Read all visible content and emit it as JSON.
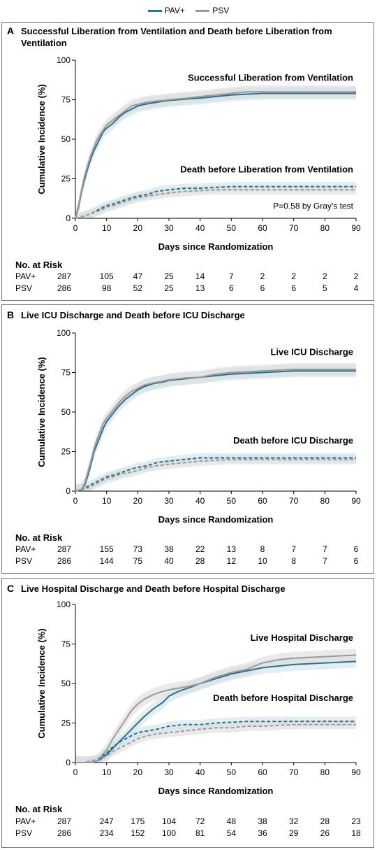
{
  "legend": [
    {
      "name": "PAV+",
      "color": "#2e6f8e"
    },
    {
      "name": "PSV",
      "color": "#9a9a9a"
    }
  ],
  "colors": {
    "pav_line": "#2e6f8e",
    "psv_line": "#9a9a9a",
    "pav_band": "#cfe2ea",
    "psv_band": "#dcdcdc"
  },
  "risk_header": "No. at Risk",
  "chart_data": [
    {
      "type": "line",
      "panel": "A",
      "title": "Successful Liberation from Ventilation and Death before Liberation from Ventilation",
      "xlabel": "Days since Randomization",
      "ylabel": "Cumulative Incidence (%)",
      "xlim": [
        0,
        90
      ],
      "ylim": [
        0,
        100
      ],
      "xticks": [
        0,
        10,
        20,
        30,
        40,
        50,
        60,
        70,
        80,
        90
      ],
      "yticks": [
        0,
        25,
        50,
        75,
        100
      ],
      "annotations": [
        {
          "text": "Successful Liberation from Ventilation",
          "x": 90,
          "y": 87
        },
        {
          "text": "Death before Liberation from Ventilation",
          "x": 90,
          "y": 29
        },
        {
          "text": "P=0.58 by Gray’s test",
          "x": 90,
          "y": 6
        }
      ],
      "series": [
        {
          "name": "PAV+",
          "outcome": "main",
          "dash": false,
          "x": [
            0,
            1,
            2,
            3,
            4,
            5,
            6,
            7,
            8,
            9,
            10,
            12,
            14,
            16,
            18,
            20,
            22,
            25,
            28,
            30,
            33,
            36,
            40,
            45,
            50,
            55,
            60,
            70,
            80,
            90
          ],
          "y": [
            0,
            7,
            17,
            25,
            32,
            38,
            43,
            47,
            51,
            55,
            57,
            60,
            64,
            67,
            69,
            71,
            72,
            73,
            74,
            74.5,
            75,
            75.5,
            76,
            77,
            78,
            78.5,
            79,
            79,
            79,
            79
          ]
        },
        {
          "name": "PSV",
          "outcome": "main",
          "dash": false,
          "x": [
            0,
            1,
            2,
            3,
            4,
            5,
            6,
            7,
            8,
            9,
            10,
            12,
            14,
            16,
            18,
            20,
            22,
            25,
            28,
            30,
            33,
            36,
            40,
            45,
            50,
            55,
            60,
            70,
            80,
            90
          ],
          "y": [
            0,
            8,
            18,
            27,
            34,
            40,
            45,
            50,
            53,
            56,
            59,
            62,
            65,
            68,
            71,
            72,
            73,
            74,
            74.5,
            75,
            75.5,
            76,
            77,
            78,
            79,
            80,
            80,
            80,
            80,
            80
          ]
        },
        {
          "name": "PAV+",
          "outcome": "death",
          "dash": true,
          "x": [
            0,
            1,
            2,
            3,
            5,
            8,
            10,
            12,
            15,
            18,
            20,
            23,
            26,
            30,
            35,
            40,
            45,
            50,
            60,
            70,
            80,
            90
          ],
          "y": [
            0,
            0.5,
            1,
            1.5,
            3,
            6,
            8,
            9,
            11,
            13,
            14,
            15,
            17,
            18,
            19,
            19,
            19.5,
            20,
            20,
            20,
            20,
            20
          ]
        },
        {
          "name": "PSV",
          "outcome": "death",
          "dash": true,
          "x": [
            0,
            1,
            2,
            3,
            5,
            8,
            10,
            12,
            15,
            18,
            20,
            23,
            26,
            30,
            35,
            40,
            45,
            50,
            60,
            70,
            80,
            90
          ],
          "y": [
            0,
            0.5,
            1,
            1.5,
            3,
            5,
            7,
            8,
            10,
            12,
            13,
            14,
            15,
            16,
            17,
            17.5,
            18,
            18,
            18,
            18,
            18,
            18
          ]
        }
      ],
      "risk": {
        "x": [
          0,
          10,
          20,
          30,
          40,
          50,
          60,
          70,
          80,
          90
        ],
        "rows": [
          {
            "label": "PAV+",
            "values": [
              287,
              105,
              47,
              25,
              14,
              7,
              2,
              2,
              2,
              2
            ]
          },
          {
            "label": "PSV",
            "values": [
              286,
              98,
              52,
              25,
              13,
              6,
              6,
              6,
              5,
              4
            ]
          }
        ]
      }
    },
    {
      "type": "line",
      "panel": "B",
      "title": "Live ICU Discharge and Death before ICU Discharge",
      "xlabel": "Days since Randomization",
      "ylabel": "Cumulative Incidence (%)",
      "xlim": [
        0,
        90
      ],
      "ylim": [
        0,
        100
      ],
      "xticks": [
        0,
        10,
        20,
        30,
        40,
        50,
        60,
        70,
        80,
        90
      ],
      "yticks": [
        0,
        25,
        50,
        75,
        100
      ],
      "annotations": [
        {
          "text": "Live ICU Discharge",
          "x": 90,
          "y": 86
        },
        {
          "text": "Death before ICU Discharge",
          "x": 90,
          "y": 30
        }
      ],
      "series": [
        {
          "name": "PAV+",
          "outcome": "main",
          "dash": false,
          "x": [
            0,
            2,
            3,
            4,
            5,
            6,
            7,
            8,
            9,
            10,
            12,
            14,
            16,
            18,
            20,
            22,
            25,
            28,
            30,
            35,
            40,
            45,
            50,
            60,
            70,
            80,
            90
          ],
          "y": [
            0,
            1,
            4,
            10,
            17,
            25,
            30,
            35,
            40,
            44,
            49,
            54,
            58,
            61,
            64,
            66,
            68,
            69,
            70,
            71,
            72,
            73,
            74,
            75,
            76,
            76,
            76
          ]
        },
        {
          "name": "PSV",
          "outcome": "main",
          "dash": false,
          "x": [
            0,
            2,
            3,
            4,
            5,
            6,
            7,
            8,
            9,
            10,
            12,
            14,
            16,
            18,
            20,
            22,
            25,
            28,
            30,
            35,
            40,
            45,
            50,
            60,
            70,
            80,
            90
          ],
          "y": [
            0,
            1,
            5,
            12,
            19,
            27,
            33,
            38,
            43,
            46,
            51,
            56,
            60,
            63,
            65,
            67,
            68.5,
            69.5,
            70.5,
            71.5,
            72,
            74,
            75,
            76,
            77,
            77,
            77
          ]
        },
        {
          "name": "PAV+",
          "outcome": "death",
          "dash": true,
          "x": [
            0,
            2,
            4,
            6,
            8,
            10,
            12,
            15,
            18,
            20,
            23,
            26,
            30,
            35,
            40,
            45,
            50,
            60,
            70,
            80,
            90
          ],
          "y": [
            0,
            1,
            3,
            5,
            7,
            9,
            10,
            12,
            14,
            15,
            16,
            18,
            19,
            20,
            21,
            21,
            21,
            21,
            21,
            21,
            21
          ]
        },
        {
          "name": "PSV",
          "outcome": "death",
          "dash": true,
          "x": [
            0,
            2,
            4,
            6,
            8,
            10,
            12,
            15,
            18,
            20,
            23,
            26,
            30,
            35,
            40,
            45,
            50,
            60,
            70,
            80,
            90
          ],
          "y": [
            0,
            1,
            2,
            4,
            6,
            8,
            9,
            11,
            12,
            13,
            15,
            16,
            17,
            18,
            19,
            19.5,
            20,
            20,
            20,
            20,
            20
          ]
        }
      ],
      "risk": {
        "x": [
          0,
          10,
          20,
          30,
          40,
          50,
          60,
          70,
          80,
          90
        ],
        "rows": [
          {
            "label": "PAV+",
            "values": [
              287,
              155,
              73,
              38,
              22,
              13,
              8,
              7,
              7,
              6
            ]
          },
          {
            "label": "PSV",
            "values": [
              286,
              144,
              75,
              40,
              28,
              12,
              10,
              8,
              7,
              6
            ]
          }
        ]
      }
    },
    {
      "type": "line",
      "panel": "C",
      "title": "Live Hospital Discharge and Death before Hospital Discharge",
      "xlabel": "Days since Randomization",
      "ylabel": "Cumulative Incidence (%)",
      "xlim": [
        0,
        90
      ],
      "ylim": [
        0,
        100
      ],
      "xticks": [
        0,
        10,
        20,
        30,
        40,
        50,
        60,
        70,
        80,
        90
      ],
      "yticks": [
        0,
        25,
        50,
        75,
        100
      ],
      "annotations": [
        {
          "text": "Live Hospital Discharge",
          "x": 90,
          "y": 77
        },
        {
          "text": "Death before Hospital Discharge",
          "x": 90,
          "y": 39
        }
      ],
      "series": [
        {
          "name": "PAV+",
          "outcome": "main",
          "dash": false,
          "x": [
            0,
            3,
            5,
            7,
            8,
            10,
            12,
            14,
            16,
            18,
            20,
            22,
            25,
            28,
            30,
            33,
            36,
            40,
            45,
            50,
            55,
            60,
            65,
            70,
            80,
            90
          ],
          "y": [
            0,
            0,
            0,
            1,
            2,
            5,
            9,
            13,
            17,
            21,
            25,
            29,
            34,
            38,
            42,
            45,
            47,
            50,
            53,
            56,
            58,
            60,
            61,
            62,
            63,
            64
          ]
        },
        {
          "name": "PSV",
          "outcome": "main",
          "dash": false,
          "x": [
            0,
            3,
            5,
            7,
            8,
            10,
            12,
            14,
            16,
            18,
            20,
            22,
            25,
            28,
            30,
            33,
            36,
            40,
            45,
            50,
            55,
            60,
            65,
            70,
            80,
            90
          ],
          "y": [
            0,
            0,
            0,
            1,
            3,
            8,
            15,
            21,
            27,
            33,
            37,
            40,
            43,
            45,
            46,
            47,
            48,
            50,
            54,
            57,
            59,
            63,
            65,
            66,
            67,
            68
          ]
        },
        {
          "name": "PAV+",
          "outcome": "death",
          "dash": true,
          "x": [
            0,
            3,
            5,
            7,
            10,
            12,
            15,
            18,
            20,
            23,
            26,
            30,
            35,
            40,
            45,
            50,
            55,
            60,
            70,
            80,
            90
          ],
          "y": [
            0,
            0,
            1,
            2,
            6,
            10,
            14,
            17,
            19,
            20,
            21,
            23,
            24,
            24,
            25,
            25.5,
            26,
            26,
            26,
            26,
            26
          ]
        },
        {
          "name": "PSV",
          "outcome": "death",
          "dash": true,
          "x": [
            0,
            3,
            5,
            7,
            10,
            12,
            15,
            18,
            20,
            23,
            26,
            30,
            35,
            40,
            45,
            50,
            55,
            60,
            70,
            80,
            90
          ],
          "y": [
            0,
            0,
            1,
            2,
            4,
            7,
            10,
            13,
            15,
            17,
            18,
            19,
            20,
            21,
            22,
            22,
            23,
            23,
            24,
            24,
            24
          ]
        }
      ],
      "risk": {
        "x": [
          0,
          10,
          20,
          30,
          40,
          50,
          60,
          70,
          80,
          90
        ],
        "rows": [
          {
            "label": "PAV+",
            "values": [
              287,
              247,
              175,
              104,
              72,
              48,
              38,
              32,
              28,
              23
            ]
          },
          {
            "label": "PSV",
            "values": [
              286,
              234,
              152,
              100,
              81,
              54,
              36,
              29,
              26,
              18
            ]
          }
        ]
      }
    }
  ]
}
